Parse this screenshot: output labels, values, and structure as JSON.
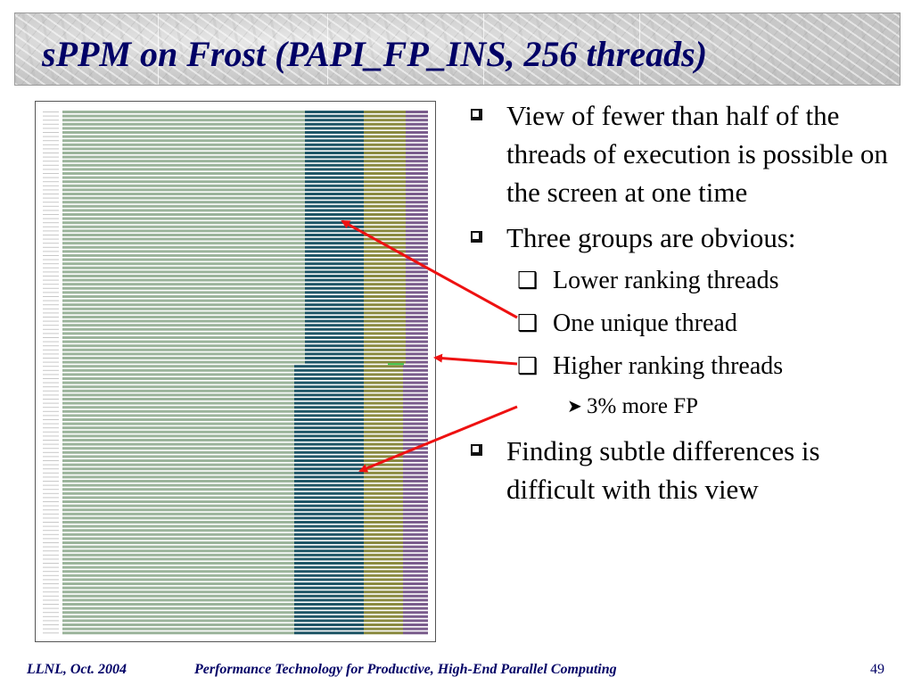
{
  "slide": {
    "title": "sPPM on Frost (PAPI_FP_INS, 256 threads)",
    "bullets": [
      {
        "level": 1,
        "text": "View of fewer than half of the threads of execution is possible on the screen at one time"
      },
      {
        "level": 1,
        "text": "Three groups are obvious:"
      },
      {
        "level": 2,
        "text": "Lower ranking threads"
      },
      {
        "level": 2,
        "text": "One unique thread"
      },
      {
        "level": 2,
        "text": "Higher ranking threads"
      },
      {
        "level": 3,
        "text": "3% more FP"
      },
      {
        "level": 1,
        "text": "Finding subtle differences is difficult with this view"
      }
    ],
    "footer": {
      "left": "LLNL, Oct. 2004",
      "center": "Performance Technology for Productive, High-End Parallel Computing",
      "page": "49"
    }
  },
  "colors": {
    "title": "#000066",
    "arrow": "#ee1111",
    "phase_a": "#9bb49b",
    "phase_b": "#1e5566",
    "phase_c": "#8a8a40",
    "phase_d": "#7a5c8c",
    "unique_thread": "#44cc55"
  },
  "icons": {
    "level1_marker": "square-bullet-icon",
    "level2_marker": "circle-bullet-icon",
    "level3_marker": "arrowhead-bullet-icon"
  }
}
